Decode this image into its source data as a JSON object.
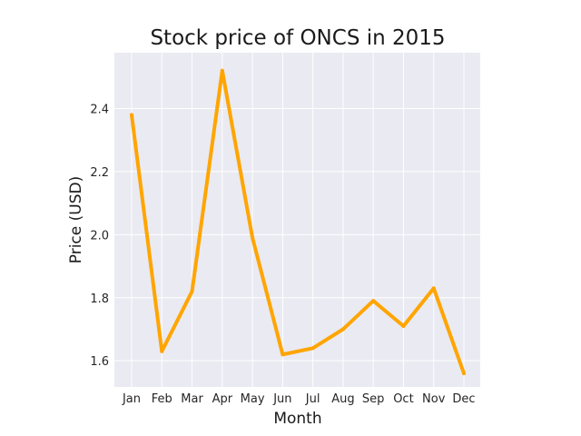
{
  "chart_data": {
    "type": "line",
    "title": "Stock price of ONCS in 2015",
    "xlabel": "Month",
    "ylabel": "Price (USD)",
    "categories": [
      "Jan",
      "Feb",
      "Mar",
      "Apr",
      "May",
      "Jun",
      "Jul",
      "Aug",
      "Sep",
      "Oct",
      "Nov",
      "Dec"
    ],
    "series": [
      {
        "values": [
          2.38,
          1.63,
          1.82,
          2.52,
          1.99,
          1.62,
          1.64,
          1.7,
          1.79,
          1.71,
          1.83,
          1.56
        ]
      }
    ],
    "yticks": [
      1.6,
      1.8,
      2.0,
      2.2,
      2.4
    ],
    "ytick_labels": [
      "1.6",
      "1.8",
      "2.0",
      "2.2",
      "2.4"
    ],
    "ylim": [
      1.517,
      2.577
    ],
    "grid": true,
    "legend": "none",
    "colors": {
      "line": "#FFA500",
      "plot_background": "#EAEAF2",
      "grid": "#FFFFFF"
    }
  }
}
